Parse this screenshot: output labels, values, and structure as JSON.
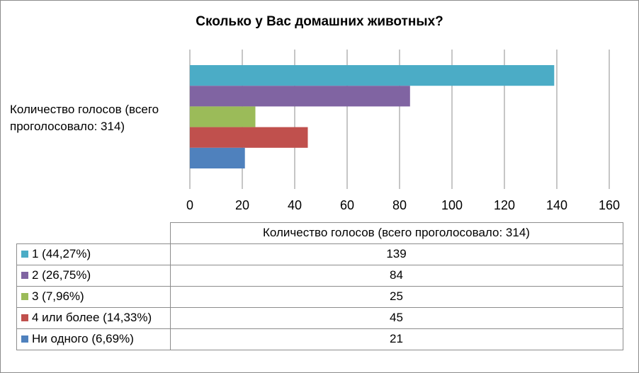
{
  "chart_data": {
    "type": "bar",
    "orientation": "horizontal",
    "title": "Сколько у Вас домашних животных?",
    "category": "Количество голосов (всего проголосовало: 314)",
    "xlim": [
      0,
      160
    ],
    "xticks": [
      0,
      20,
      40,
      60,
      80,
      100,
      120,
      140,
      160
    ],
    "grid": true,
    "series": [
      {
        "name": "1 (44,27%)",
        "value": 139,
        "color": "#4bacc6"
      },
      {
        "name": "2 (26,75%)",
        "value": 84,
        "color": "#8064a2"
      },
      {
        "name": "3 (7,96%)",
        "value": 25,
        "color": "#9bbb59"
      },
      {
        "name": "4 или более (14,33%)",
        "value": 45,
        "color": "#c0504d"
      },
      {
        "name": "Ни одного (6,69%)",
        "value": 21,
        "color": "#4f81bd"
      }
    ],
    "data_table": {
      "header": "Количество голосов (всего проголосовало: 314)",
      "values": [
        "139",
        "84",
        "25",
        "45",
        "21"
      ]
    }
  }
}
